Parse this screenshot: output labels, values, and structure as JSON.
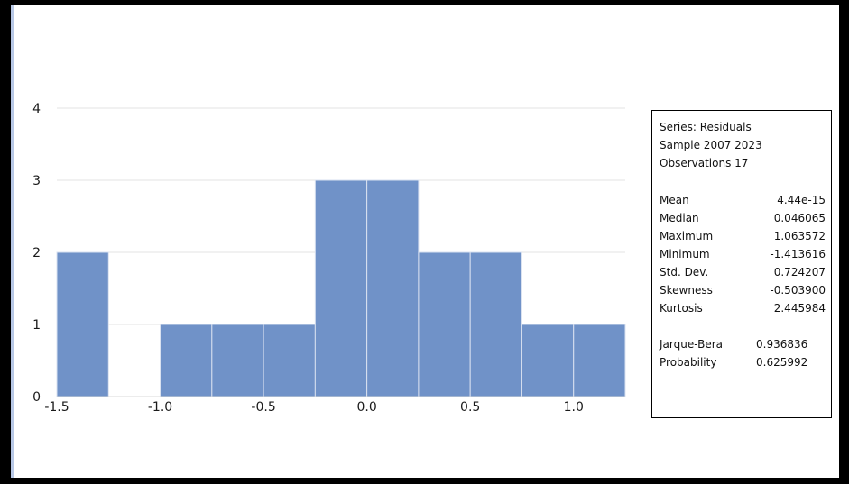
{
  "chart_data": {
    "type": "bar",
    "bins": [
      {
        "from": -1.5,
        "to": -1.25,
        "count": 2
      },
      {
        "from": -1.25,
        "to": -1.0,
        "count": 0
      },
      {
        "from": -1.0,
        "to": -0.75,
        "count": 1
      },
      {
        "from": -0.75,
        "to": -0.5,
        "count": 1
      },
      {
        "from": -0.5,
        "to": -0.25,
        "count": 1
      },
      {
        "from": -0.25,
        "to": 0.0,
        "count": 3
      },
      {
        "from": 0.0,
        "to": 0.25,
        "count": 3
      },
      {
        "from": 0.25,
        "to": 0.5,
        "count": 2
      },
      {
        "from": 0.5,
        "to": 0.75,
        "count": 2
      },
      {
        "from": 0.75,
        "to": 1.0,
        "count": 1
      },
      {
        "from": 1.0,
        "to": 1.25,
        "count": 1
      }
    ],
    "x_ticks": [
      "-1.5",
      "-1.0",
      "-0.5",
      "0.0",
      "0.5",
      "1.0"
    ],
    "x_tick_values": [
      -1.5,
      -1.0,
      -0.5,
      0.0,
      0.5,
      1.0
    ],
    "y_ticks": [
      "0",
      "1",
      "2",
      "3",
      "4"
    ],
    "y_tick_values": [
      0,
      1,
      2,
      3,
      4
    ],
    "xlim": [
      -1.5,
      1.25
    ],
    "ylim": [
      0,
      4
    ],
    "grid": true,
    "bar_color": "#7092c8",
    "bar_edge_color": "#d9e1f0",
    "title": "",
    "xlabel": "",
    "ylabel": ""
  },
  "stats": {
    "series": "Series: Residuals",
    "sample": "Sample 2007 2023",
    "observations": "Observations 17",
    "rows": [
      {
        "label": "Mean",
        "value": "4.44e-15"
      },
      {
        "label": "Median",
        "value": "0.046065"
      },
      {
        "label": "Maximum",
        "value": "1.063572"
      },
      {
        "label": "Minimum",
        "value": "-1.413616"
      },
      {
        "label": "Std. Dev.",
        "value": "0.724207"
      },
      {
        "label": "Skewness",
        "value": "-0.503900"
      },
      {
        "label": "Kurtosis",
        "value": "2.445984"
      }
    ],
    "jb_rows": [
      {
        "label": "Jarque-Bera",
        "value": "0.936836"
      },
      {
        "label": "Probability",
        "value": "0.625992"
      }
    ]
  }
}
